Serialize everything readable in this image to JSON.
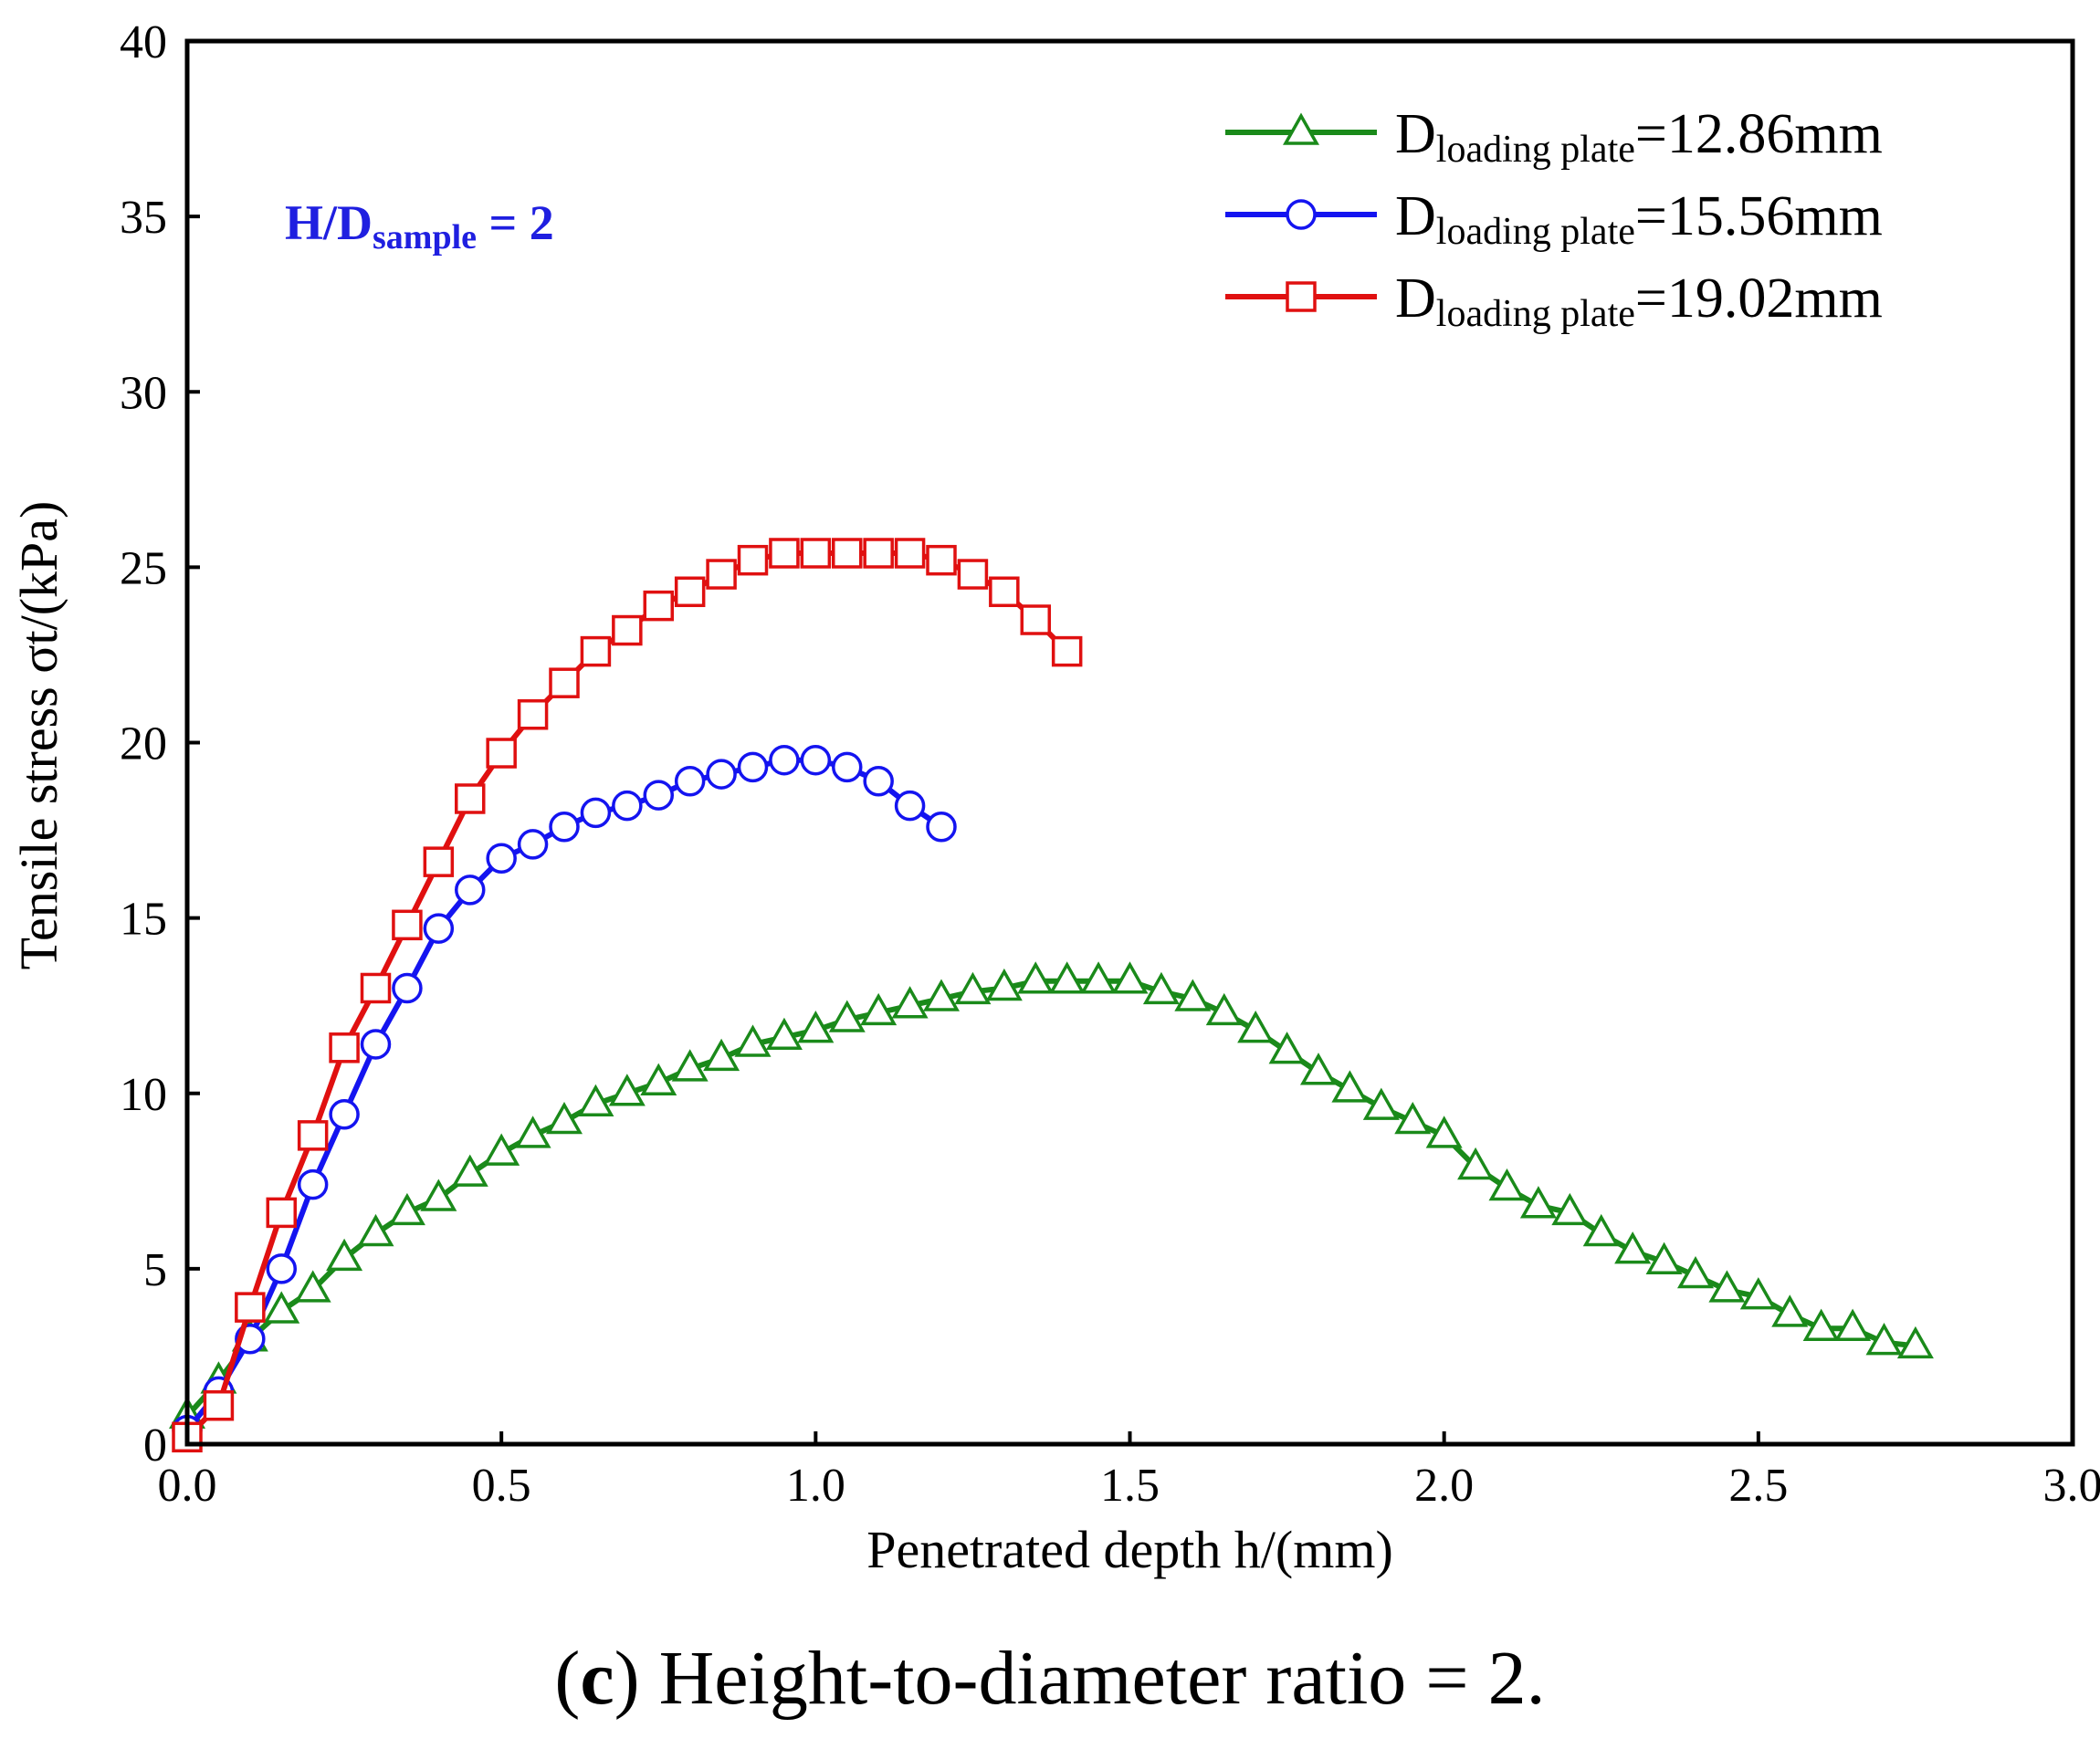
{
  "chart_data": {
    "type": "line",
    "title": "",
    "xlabel": "Penetrated depth h/(mm)",
    "ylabel": "Tensile stress σt/(kPa)",
    "xlim": [
      0.0,
      3.0
    ],
    "ylim": [
      0,
      40
    ],
    "x_ticks": [
      "0.0",
      "0.5",
      "1.0",
      "1.5",
      "2.0",
      "2.5",
      "3.0"
    ],
    "y_ticks": [
      "0",
      "5",
      "10",
      "15",
      "20",
      "25",
      "30",
      "35",
      "40"
    ],
    "legend_position": "top-right",
    "annotation": {
      "main": "H/D",
      "sub": "sample",
      "suffix": " = 2",
      "color": "#1f1fe0"
    },
    "series": [
      {
        "name": "Dloading plate=12.86mm",
        "legend_main": "D",
        "legend_sub": "loading plate",
        "legend_suffix": "=12.86mm",
        "color": "#1a8a1a",
        "marker": "triangle",
        "x": [
          0.0,
          0.05,
          0.1,
          0.15,
          0.2,
          0.25,
          0.3,
          0.35,
          0.4,
          0.45,
          0.5,
          0.55,
          0.6,
          0.65,
          0.7,
          0.75,
          0.8,
          0.85,
          0.9,
          0.95,
          1.0,
          1.05,
          1.1,
          1.15,
          1.2,
          1.25,
          1.3,
          1.35,
          1.4,
          1.45,
          1.5,
          1.55,
          1.6,
          1.65,
          1.7,
          1.75,
          1.8,
          1.85,
          1.9,
          1.95,
          2.0,
          2.05,
          2.1,
          2.15,
          2.2,
          2.25,
          2.3,
          2.35,
          2.4,
          2.45,
          2.5,
          2.55,
          2.6,
          2.65,
          2.7,
          2.75
        ],
        "y": [
          0.8,
          1.8,
          3.0,
          3.8,
          4.4,
          5.3,
          6.0,
          6.6,
          7.0,
          7.7,
          8.3,
          8.8,
          9.2,
          9.7,
          10.0,
          10.3,
          10.7,
          11.0,
          11.4,
          11.6,
          11.8,
          12.1,
          12.3,
          12.5,
          12.7,
          12.9,
          13.0,
          13.2,
          13.2,
          13.2,
          13.2,
          12.9,
          12.7,
          12.3,
          11.8,
          11.2,
          10.6,
          10.1,
          9.6,
          9.2,
          8.8,
          7.9,
          7.3,
          6.8,
          6.6,
          6.0,
          5.5,
          5.2,
          4.8,
          4.4,
          4.2,
          3.7,
          3.3,
          3.3,
          2.9,
          2.8
        ]
      },
      {
        "name": "Dloading plate=15.56mm",
        "legend_main": "D",
        "legend_sub": "loading plate",
        "legend_suffix": "=15.56mm",
        "color": "#1414f0",
        "marker": "circle",
        "x": [
          0.0,
          0.05,
          0.1,
          0.15,
          0.2,
          0.25,
          0.3,
          0.35,
          0.4,
          0.45,
          0.5,
          0.55,
          0.6,
          0.65,
          0.7,
          0.75,
          0.8,
          0.85,
          0.9,
          0.95,
          1.0,
          1.05,
          1.1,
          1.15,
          1.2
        ],
        "y": [
          0.4,
          1.5,
          3.0,
          5.0,
          7.4,
          9.4,
          11.4,
          13.0,
          14.7,
          15.8,
          16.7,
          17.1,
          17.6,
          18.0,
          18.2,
          18.5,
          18.9,
          19.1,
          19.3,
          19.5,
          19.5,
          19.3,
          18.9,
          18.2,
          17.6
        ]
      },
      {
        "name": "Dloading plate=19.02mm",
        "legend_main": "D",
        "legend_sub": "loading plate",
        "legend_suffix": "=19.02mm",
        "color": "#e01010",
        "marker": "square",
        "x": [
          0.0,
          0.05,
          0.1,
          0.15,
          0.2,
          0.25,
          0.3,
          0.35,
          0.4,
          0.45,
          0.5,
          0.55,
          0.6,
          0.65,
          0.7,
          0.75,
          0.8,
          0.85,
          0.9,
          0.95,
          1.0,
          1.05,
          1.1,
          1.15,
          1.2,
          1.25,
          1.3,
          1.35,
          1.4
        ],
        "y": [
          0.2,
          1.1,
          3.9,
          6.6,
          8.8,
          11.3,
          13.0,
          14.8,
          16.6,
          18.4,
          19.7,
          20.8,
          21.7,
          22.6,
          23.2,
          23.9,
          24.3,
          24.8,
          25.2,
          25.4,
          25.4,
          25.4,
          25.4,
          25.4,
          25.2,
          24.8,
          24.3,
          23.5,
          22.6
        ]
      }
    ]
  },
  "caption": {
    "label": "c",
    "text": " Height-to-diameter ratio = 2."
  }
}
